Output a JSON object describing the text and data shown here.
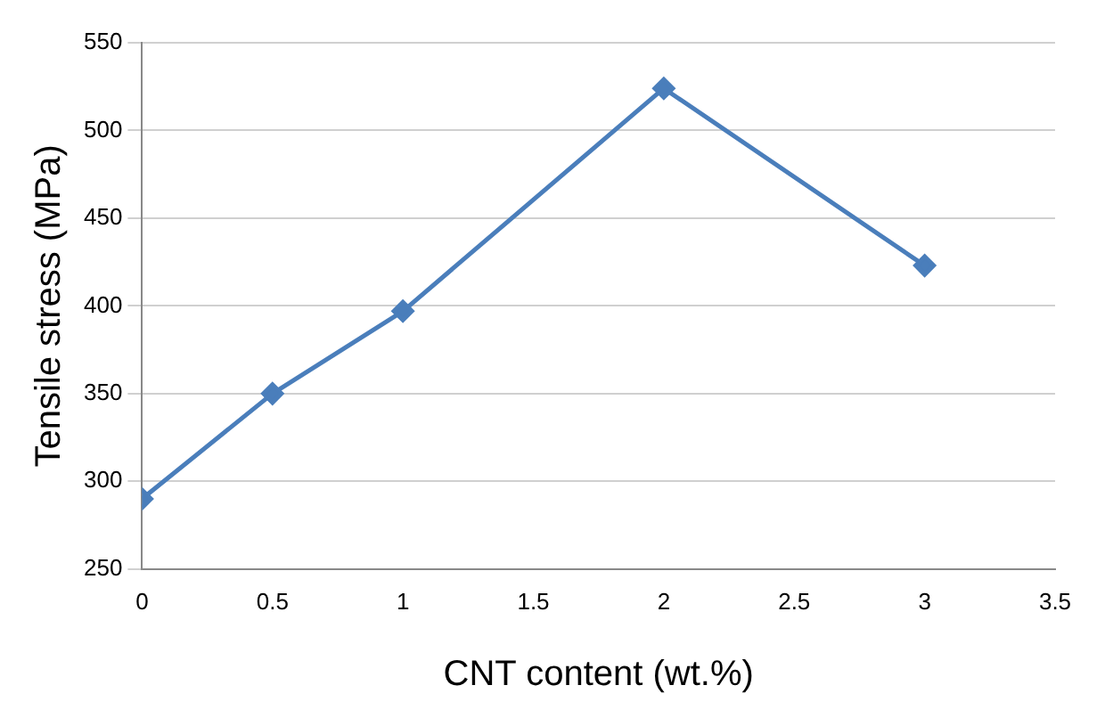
{
  "chart_data": {
    "type": "line",
    "xlabel": "CNT content (wt.%)",
    "ylabel": "Tensile stress (MPa)",
    "x": [
      0,
      0.5,
      1,
      2,
      3
    ],
    "series": [
      {
        "color": "#4a7ebb",
        "values": [
          290,
          350,
          397,
          524,
          423
        ]
      }
    ],
    "xlim": [
      0,
      3.5
    ],
    "xticks": [
      0,
      0.5,
      1,
      1.5,
      2,
      2.5,
      3,
      3.5
    ],
    "ylim": [
      250,
      550
    ],
    "yticks": [
      250,
      300,
      350,
      400,
      450,
      500,
      550
    ],
    "grid": "y",
    "legend": false,
    "marker": "diamond",
    "line_style": "solid"
  }
}
